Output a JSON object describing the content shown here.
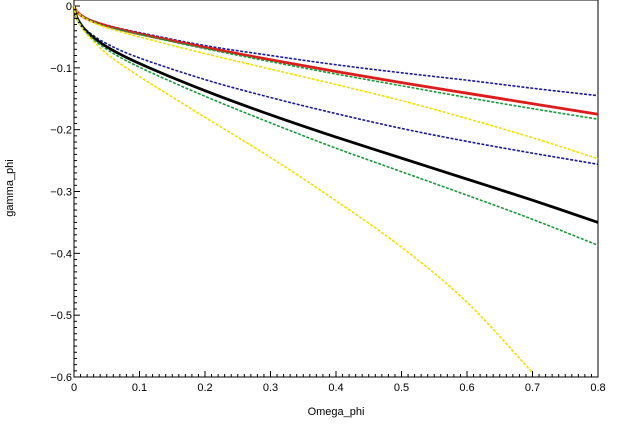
{
  "chart_data": {
    "type": "line",
    "xlabel": "Omega_phi",
    "ylabel": "gamma_phi",
    "xlim": [
      0,
      0.8
    ],
    "ylim": [
      -0.6,
      0
    ],
    "x_ticks": [
      0,
      0.1,
      0.2,
      0.3,
      0.4,
      0.5,
      0.6,
      0.7,
      0.8
    ],
    "x_tick_labels": [
      "0",
      "0.1",
      "0.2",
      "0.3",
      "0.4",
      "0.5",
      "0.6",
      "0.7",
      "0.8"
    ],
    "y_ticks": [
      0,
      -0.1,
      -0.2,
      -0.3,
      -0.4,
      -0.5,
      -0.6
    ],
    "y_tick_labels": [
      "0",
      "−0.1",
      "−0.2",
      "−0.3",
      "−0.4",
      "−0.5",
      "−0.6"
    ],
    "grid": false,
    "series": [
      {
        "color": "#1a1aa0",
        "style": "dashed",
        "x": [
          0,
          0.005,
          0.02,
          0.05,
          0.1,
          0.2,
          0.3,
          0.4,
          0.5,
          0.6,
          0.7,
          0.8
        ],
        "y": [
          0,
          -0.01,
          -0.02,
          -0.031,
          -0.043,
          -0.064,
          -0.08,
          -0.095,
          -0.108,
          -0.12,
          -0.133,
          -0.145
        ]
      },
      {
        "color": "#dd1c1c",
        "style": "solid",
        "x": [
          0,
          0.005,
          0.02,
          0.05,
          0.1,
          0.2,
          0.3,
          0.4,
          0.5,
          0.6,
          0.7,
          0.8
        ],
        "y": [
          0,
          -0.01,
          -0.021,
          -0.032,
          -0.045,
          -0.067,
          -0.087,
          -0.106,
          -0.124,
          -0.141,
          -0.158,
          -0.175
        ]
      },
      {
        "color": "#1a9a3a",
        "style": "dashed",
        "x": [
          0,
          0.005,
          0.02,
          0.05,
          0.1,
          0.2,
          0.3,
          0.4,
          0.5,
          0.6,
          0.7,
          0.8
        ],
        "y": [
          0,
          -0.01,
          -0.021,
          -0.033,
          -0.046,
          -0.069,
          -0.09,
          -0.11,
          -0.129,
          -0.148,
          -0.166,
          -0.183
        ]
      },
      {
        "color": "#f0e000",
        "style": "dashed",
        "x": [
          0,
          0.005,
          0.02,
          0.05,
          0.1,
          0.2,
          0.3,
          0.4,
          0.5,
          0.6,
          0.7,
          0.8
        ],
        "y": [
          0,
          -0.01,
          -0.022,
          -0.035,
          -0.05,
          -0.077,
          -0.102,
          -0.127,
          -0.153,
          -0.182,
          -0.213,
          -0.247
        ]
      },
      {
        "color": "#1a1aa0",
        "style": "dashed",
        "x": [
          0,
          0.005,
          0.02,
          0.05,
          0.1,
          0.2,
          0.3,
          0.4,
          0.5,
          0.6,
          0.7,
          0.8
        ],
        "y": [
          0,
          -0.02,
          -0.04,
          -0.061,
          -0.084,
          -0.119,
          -0.148,
          -0.174,
          -0.198,
          -0.219,
          -0.238,
          -0.256
        ]
      },
      {
        "color": "#000000",
        "style": "solid",
        "x": [
          0,
          0.005,
          0.02,
          0.05,
          0.1,
          0.2,
          0.3,
          0.4,
          0.5,
          0.6,
          0.7,
          0.8
        ],
        "y": [
          0,
          -0.02,
          -0.042,
          -0.066,
          -0.093,
          -0.137,
          -0.176,
          -0.212,
          -0.246,
          -0.28,
          -0.314,
          -0.35
        ]
      },
      {
        "color": "#1a9a3a",
        "style": "dashed",
        "x": [
          0,
          0.005,
          0.02,
          0.05,
          0.1,
          0.2,
          0.3,
          0.4,
          0.5,
          0.6,
          0.7,
          0.8
        ],
        "y": [
          0,
          -0.021,
          -0.044,
          -0.07,
          -0.099,
          -0.146,
          -0.189,
          -0.23,
          -0.268,
          -0.306,
          -0.345,
          -0.387
        ]
      },
      {
        "color": "#f0e000",
        "style": "dashed",
        "x": [
          0,
          0.005,
          0.02,
          0.05,
          0.1,
          0.2,
          0.3,
          0.4,
          0.5,
          0.6,
          0.7
        ],
        "y": [
          0,
          -0.022,
          -0.046,
          -0.077,
          -0.114,
          -0.18,
          -0.245,
          -0.315,
          -0.39,
          -0.479,
          -0.593
        ]
      }
    ]
  }
}
